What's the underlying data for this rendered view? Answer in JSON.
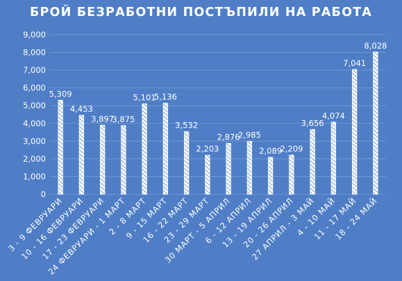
{
  "chart_data": {
    "type": "bar",
    "title": "БРОЙ БЕЗРАБОТНИ ПОСТЪПИЛИ НА РАБОТА",
    "xlabel": "",
    "ylabel": "",
    "ylim": [
      0,
      9000
    ],
    "y_ticks": [
      "0",
      "1,000",
      "2,000",
      "3,000",
      "4,000",
      "5,000",
      "6,000",
      "7,000",
      "8,000",
      "9,000"
    ],
    "grid": true,
    "legend": "none",
    "categories": [
      "3 - 9 ФЕВРУАРИ",
      "10 - 16 ФЕВРУАРИ",
      "17 - 23 ФЕВРУАРИ",
      "24 ФЕВРУАРИ - 1 МАРТ",
      "2 - 8 МАРТ",
      "9 - 15 МАРТ",
      "16 - 22 МАРТ",
      "23 - 29 МАРТ",
      "30 МАРТ - 5 АПРИЛ",
      "6 - 12 АПРИЛ",
      "13 - 19 АПРИЛ",
      "20 - 26 АПРИЛ",
      "27 АПРИЛ - 3 МАЙ",
      "4 - 10 МАЙ",
      "11 - 17 МАЙ",
      "18 - 24 МАЙ"
    ],
    "values": [
      5309,
      4453,
      3897,
      3875,
      5101,
      5136,
      3532,
      2203,
      2876,
      2985,
      2089,
      2209,
      3656,
      4074,
      7041,
      8028
    ],
    "value_labels": [
      "5,309",
      "4,453",
      "3,897",
      "3,875",
      "5,101",
      "5,136",
      "3,532",
      "2,203",
      "2,876",
      "2,985",
      "2,089",
      "2,209",
      "3,656",
      "4,074",
      "7,041",
      "8,028"
    ],
    "colors": {
      "background": "#4f7ec6",
      "bar_fill": "#ffffff",
      "bar_hatch": "#4f7ec6",
      "text": "#ffffff",
      "grid": "#6f97d3"
    }
  }
}
